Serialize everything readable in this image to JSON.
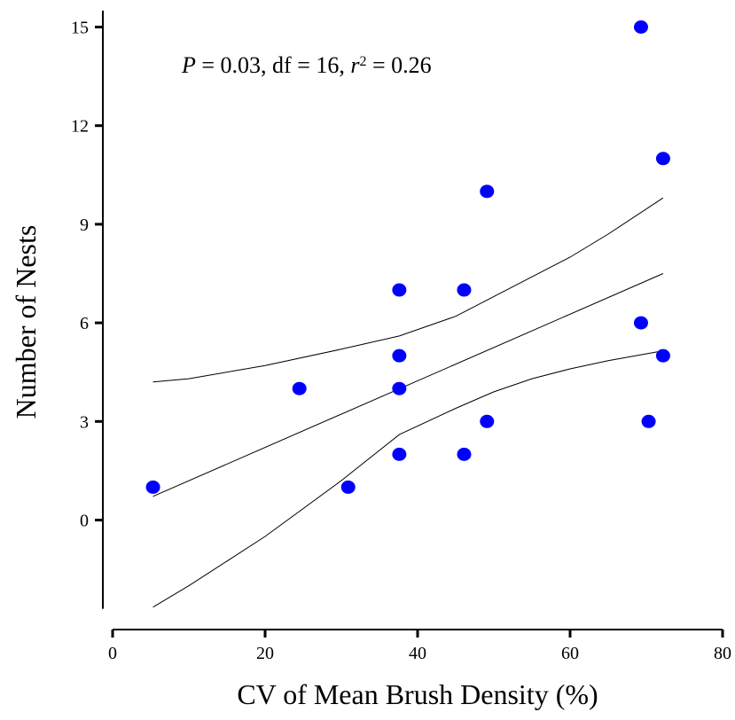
{
  "chart_data": {
    "type": "scatter",
    "title": "",
    "xlabel": "CV of Mean Brush Density (%)",
    "ylabel": "Number of Nests",
    "annotation": {
      "p_prefix": "P",
      "p_text": " = 0.03, df = 16, ",
      "r_prefix": "r",
      "r_sup": "2",
      "r_text": " = 0.26"
    },
    "xlim": [
      0,
      80
    ],
    "ylim": [
      -2.7,
      15.5
    ],
    "x_ticks": [
      0,
      20,
      40,
      60,
      80
    ],
    "x_tick_labels": [
      "0",
      "20",
      "40",
      "60",
      "80"
    ],
    "y_ticks": [
      0,
      3,
      6,
      9,
      12,
      15
    ],
    "y_tick_labels": [
      "0",
      "3",
      "6",
      "9",
      "12",
      "15"
    ],
    "grid": false,
    "point_color": "#0000ff",
    "points": [
      {
        "x": 5.3,
        "y": 1
      },
      {
        "x": 24.5,
        "y": 4
      },
      {
        "x": 30.9,
        "y": 1
      },
      {
        "x": 37.6,
        "y": 7
      },
      {
        "x": 37.6,
        "y": 5
      },
      {
        "x": 37.6,
        "y": 4
      },
      {
        "x": 37.6,
        "y": 2
      },
      {
        "x": 46.1,
        "y": 7
      },
      {
        "x": 46.1,
        "y": 2
      },
      {
        "x": 49.1,
        "y": 10
      },
      {
        "x": 49.1,
        "y": 3
      },
      {
        "x": 69.3,
        "y": 15
      },
      {
        "x": 69.3,
        "y": 6
      },
      {
        "x": 70.3,
        "y": 3
      },
      {
        "x": 72.2,
        "y": 11
      },
      {
        "x": 72.2,
        "y": 5
      }
    ],
    "regression": {
      "x": [
        5.3,
        72.2
      ],
      "y": [
        0.72,
        7.5
      ]
    },
    "upper_band": {
      "x": [
        5.3,
        10,
        20,
        30,
        37.6,
        45,
        50,
        55,
        60,
        65,
        72.2
      ],
      "y": [
        4.2,
        4.3,
        4.7,
        5.2,
        5.6,
        6.2,
        6.8,
        7.4,
        8.0,
        8.7,
        9.8
      ]
    },
    "lower_band": {
      "x": [
        5.3,
        10,
        20,
        30,
        37.6,
        45,
        50,
        55,
        60,
        65,
        72.2
      ],
      "y": [
        -2.65,
        -2.0,
        -0.5,
        1.2,
        2.6,
        3.4,
        3.9,
        4.3,
        4.6,
        4.85,
        5.15
      ]
    }
  }
}
